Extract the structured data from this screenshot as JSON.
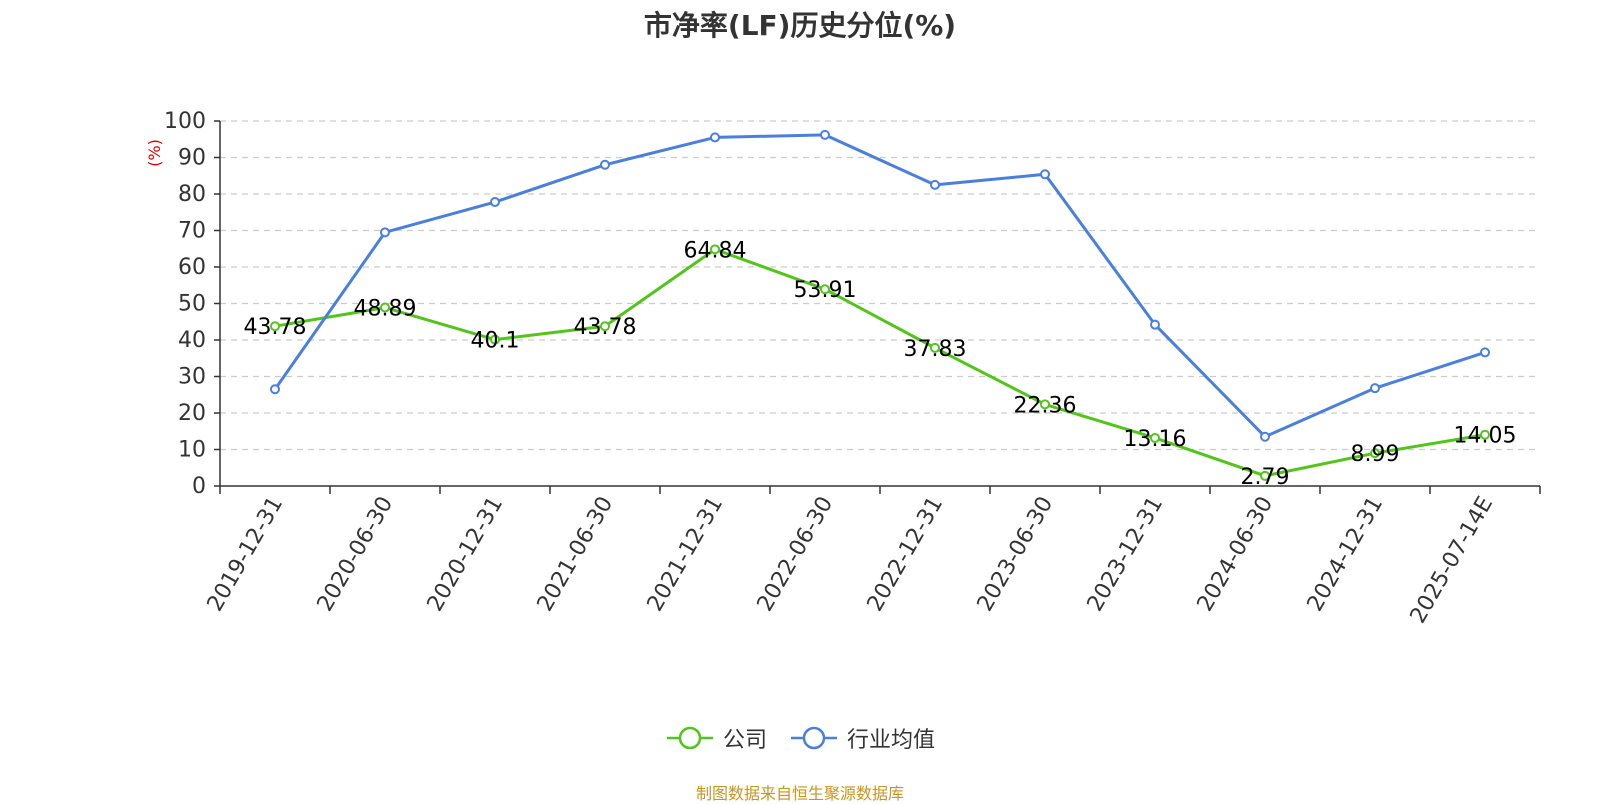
{
  "chart_data": {
    "type": "line",
    "title": "市净率(LF)历史分位(%)",
    "ylabel": "(%)",
    "xlabel": "",
    "ylim": [
      0,
      100
    ],
    "yticks": [
      0,
      10,
      20,
      30,
      40,
      50,
      60,
      70,
      80,
      90,
      100
    ],
    "categories": [
      "2019-12-31",
      "2020-06-30",
      "2020-12-31",
      "2021-06-30",
      "2021-12-31",
      "2022-06-30",
      "2022-12-31",
      "2023-06-30",
      "2023-12-31",
      "2024-06-30",
      "2024-12-31",
      "2025-07-14E"
    ],
    "series": [
      {
        "name": "公司",
        "color": "#52c41a",
        "show_labels": true,
        "values": [
          43.78,
          48.89,
          40.1,
          43.78,
          64.84,
          53.91,
          37.83,
          22.36,
          13.16,
          2.79,
          8.99,
          14.05
        ]
      },
      {
        "name": "行业均值",
        "color": "#4a7fdc",
        "show_labels": false,
        "values": [
          26.5,
          69.5,
          77.8,
          88.0,
          95.5,
          96.2,
          82.5,
          85.4,
          44.2,
          13.5,
          26.8,
          36.6
        ]
      }
    ],
    "grid": true,
    "legend_position": "bottom"
  },
  "source_note": "制图数据来自恒生聚源数据库"
}
